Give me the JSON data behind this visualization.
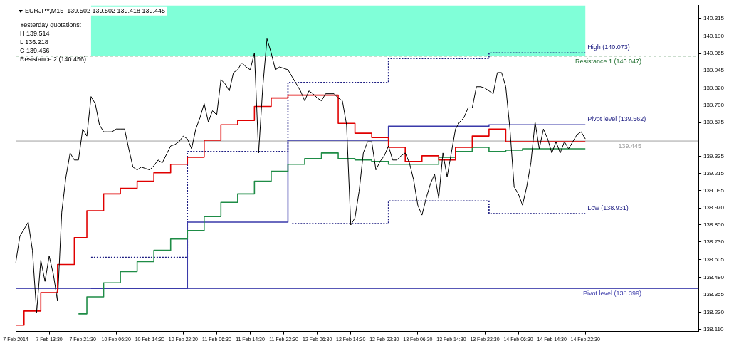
{
  "chart_data": {
    "type": "line",
    "title": "EURJPY,M15  139.502 139.502 139.418 139.445",
    "categories": [
      "7 Feb 2014",
      null,
      null,
      null,
      null,
      null,
      null,
      null,
      "7 Feb 13:30",
      null,
      null,
      null,
      null,
      null,
      null,
      null,
      "7 Feb 21:30",
      null,
      null,
      null,
      null,
      null,
      null,
      null,
      "10 Feb 06:30",
      null,
      null,
      null,
      null,
      null,
      null,
      null,
      "10 Feb 14:30",
      null,
      null,
      null,
      null,
      null,
      null,
      null,
      "10 Feb 22:30",
      null,
      null,
      null,
      null,
      null,
      null,
      null,
      "11 Feb 06:30",
      null,
      null,
      null,
      null,
      null,
      null,
      null,
      "11 Feb 14:30",
      null,
      null,
      null,
      null,
      null,
      null,
      null,
      "11 Feb 22:30",
      null,
      null,
      null,
      null,
      null,
      null,
      null,
      "12 Feb 06:30",
      null,
      null,
      null,
      null,
      null,
      null,
      null,
      "12 Feb 14:30",
      null,
      null,
      null,
      null,
      null,
      null,
      null,
      "12 Feb 22:30",
      null,
      null,
      null,
      null,
      null,
      null,
      null,
      "13 Feb 06:30",
      null,
      null,
      null,
      null,
      null,
      null,
      null,
      "13 Feb 14:30",
      null,
      null,
      null,
      null,
      null,
      null,
      null,
      "13 Feb 22:30",
      null,
      null,
      null,
      null,
      null,
      null,
      null,
      "14 Feb 06:30",
      null,
      null,
      null,
      null,
      null,
      null,
      null,
      "14 Feb 14:30",
      null,
      null,
      null,
      null,
      null,
      null,
      null,
      "14 Feb 22:30",
      null,
      null,
      null,
      null,
      null,
      null,
      null,
      null,
      null,
      null,
      null,
      null,
      null,
      null,
      null,
      null,
      null,
      null,
      null,
      null,
      null,
      null,
      null,
      null,
      null,
      null,
      null
    ],
    "ylim": [
      138.095,
      140.405
    ],
    "yticks": [
      {
        "value": 138.11,
        "label": "138.110"
      },
      {
        "value": 138.23,
        "label": "138.230"
      },
      138.355,
      {
        "value": 138.48,
        "label": "138.480"
      },
      138.605,
      {
        "value": 138.73,
        "label": "138.730"
      },
      {
        "value": 138.85,
        "label": "138.850"
      },
      {
        "value": 138.97,
        "label": "138.970"
      },
      139.095,
      139.215,
      139.335,
      139.575,
      {
        "value": 139.7,
        "label": "139.700"
      },
      {
        "value": 139.82,
        "label": "139.820"
      },
      139.945,
      140.065,
      {
        "value": 140.19,
        "label": "140.190"
      },
      140.315
    ],
    "series": [
      {
        "color": "#000000",
        "values": [
          138.58,
          138.77,
          138.82,
          138.87,
          138.67,
          138.23,
          138.6,
          138.45,
          138.63,
          138.5,
          138.31,
          138.94,
          139.19,
          139.36,
          139.31,
          139.31,
          139.53,
          139.48,
          139.76,
          139.71,
          139.56,
          139.51,
          139.51,
          139.51,
          139.53,
          139.53,
          139.53,
          139.39,
          139.26,
          139.24,
          139.26,
          139.25,
          139.24,
          139.27,
          139.31,
          139.29,
          139.35,
          139.41,
          139.42,
          139.44,
          139.48,
          139.46,
          139.39,
          139.53,
          139.61,
          139.71,
          139.58,
          139.66,
          139.63,
          139.88,
          139.85,
          139.8,
          139.93,
          139.95,
          140.0,
          139.97,
          139.95,
          140.07,
          139.36,
          139.83,
          140.17,
          140.07,
          139.95,
          139.97,
          139.96,
          139.95,
          139.9,
          139.85,
          139.8,
          139.73,
          139.8,
          139.78,
          139.75,
          139.73,
          139.78,
          139.78,
          139.78,
          139.75,
          139.73,
          139.56,
          138.85,
          138.9,
          139.09,
          139.36,
          139.44,
          139.44,
          139.24,
          139.3,
          139.34,
          139.41,
          139.31,
          139.31,
          139.34,
          139.36,
          139.29,
          139.17,
          138.99,
          138.92,
          139.04,
          139.14,
          139.21,
          139.04,
          139.36,
          139.19,
          139.36,
          139.53,
          139.58,
          139.61,
          139.68,
          139.68,
          139.83,
          139.83,
          139.82,
          139.8,
          139.78,
          139.93,
          139.93,
          139.83,
          139.53,
          139.12,
          139.07,
          138.99,
          139.12,
          139.29,
          139.58,
          139.39,
          139.53,
          139.46,
          139.36,
          139.44,
          139.36,
          139.44,
          139.39,
          139.44,
          139.49,
          139.51,
          139.46,
          null,
          null,
          null,
          null,
          null,
          null,
          null,
          null,
          null,
          null,
          null,
          null,
          null,
          null,
          null,
          null,
          null,
          null,
          null,
          null,
          null,
          null,
          null,
          null,
          null,
          null,
          null
        ]
      },
      {
        "type": "step",
        "color": "#e00000",
        "values": [
          138.14,
          138.14,
          138.14,
          138.24,
          138.24,
          138.24,
          138.24,
          138.37,
          138.37,
          138.37,
          138.37,
          138.57,
          138.57,
          138.57,
          138.57,
          138.76,
          138.76,
          138.76,
          138.95,
          138.95,
          138.95,
          138.95,
          139.07,
          139.07,
          139.07,
          139.07,
          139.11,
          139.11,
          139.11,
          139.11,
          139.16,
          139.16,
          139.16,
          139.16,
          139.22,
          139.22,
          139.22,
          139.22,
          139.28,
          139.28,
          139.28,
          139.28,
          139.33,
          139.33,
          139.33,
          139.33,
          139.45,
          139.45,
          139.45,
          139.45,
          139.56,
          139.56,
          139.56,
          139.56,
          139.59,
          139.59,
          139.59,
          139.59,
          139.69,
          139.69,
          139.69,
          139.69,
          139.75,
          139.75,
          139.75,
          139.75,
          139.77,
          139.77,
          139.77,
          139.77,
          139.77,
          139.77,
          139.77,
          139.77,
          139.77,
          139.77,
          139.77,
          139.77,
          139.57,
          139.57,
          139.57,
          139.57,
          139.5,
          139.5,
          139.5,
          139.5,
          139.47,
          139.47,
          139.47,
          139.47,
          139.4,
          139.4,
          139.4,
          139.4,
          139.3,
          139.3,
          139.3,
          139.3,
          139.34,
          139.34,
          139.34,
          139.34,
          139.31,
          139.31,
          139.31,
          139.31,
          139.4,
          139.4,
          139.4,
          139.4,
          139.48,
          139.48,
          139.48,
          139.48,
          139.53,
          139.53,
          139.53,
          139.53,
          139.44,
          139.44,
          139.44,
          139.44,
          139.44,
          139.44,
          139.44,
          139.44,
          139.44,
          139.44,
          139.44,
          139.44,
          139.44,
          139.44,
          139.44,
          139.44,
          139.44,
          139.44,
          139.44,
          null,
          null,
          null,
          null,
          null,
          null,
          null,
          null,
          null,
          null,
          null,
          null,
          null,
          null,
          null,
          null,
          null,
          null,
          null,
          null,
          null,
          null,
          null,
          null,
          null,
          null,
          null
        ]
      },
      {
        "type": "step",
        "color": "#1e8c46",
        "values": [
          null,
          null,
          null,
          null,
          null,
          null,
          null,
          null,
          null,
          null,
          null,
          null,
          null,
          null,
          null,
          138.22,
          138.22,
          138.22,
          138.34,
          138.34,
          138.34,
          138.34,
          138.44,
          138.44,
          138.44,
          138.44,
          138.52,
          138.52,
          138.52,
          138.52,
          138.59,
          138.59,
          138.59,
          138.59,
          138.67,
          138.67,
          138.67,
          138.67,
          138.75,
          138.75,
          138.75,
          138.75,
          138.81,
          138.81,
          138.81,
          138.81,
          138.91,
          138.91,
          138.91,
          138.91,
          139.01,
          139.01,
          139.01,
          139.01,
          139.07,
          139.07,
          139.07,
          139.07,
          139.16,
          139.16,
          139.16,
          139.16,
          139.23,
          139.23,
          139.23,
          139.23,
          139.28,
          139.28,
          139.28,
          139.28,
          139.32,
          139.32,
          139.32,
          139.32,
          139.36,
          139.36,
          139.36,
          139.36,
          139.32,
          139.32,
          139.32,
          139.32,
          139.31,
          139.31,
          139.31,
          139.31,
          139.3,
          139.3,
          139.3,
          139.3,
          139.28,
          139.28,
          139.28,
          139.28,
          139.28,
          139.28,
          139.28,
          139.28,
          139.28,
          139.28,
          139.28,
          139.28,
          139.33,
          139.33,
          139.33,
          139.33,
          139.37,
          139.37,
          139.37,
          139.37,
          139.4,
          139.4,
          139.4,
          139.4,
          139.37,
          139.37,
          139.37,
          139.37,
          139.38,
          139.38,
          139.38,
          139.38,
          139.39,
          139.39,
          139.39,
          139.39,
          139.39,
          139.39,
          139.39,
          139.39,
          139.39,
          139.39,
          139.39,
          139.39,
          139.39,
          139.39,
          139.39,
          null,
          null,
          null,
          null,
          null,
          null,
          null,
          null,
          null,
          null,
          null,
          null,
          null,
          null,
          null,
          null,
          null,
          null,
          null,
          null,
          null,
          null,
          null,
          null,
          null,
          null,
          null
        ]
      },
      {
        "type": "step",
        "color": "#3a3aaa",
        "values": [
          null,
          null,
          null,
          null,
          null,
          null,
          null,
          null,
          null,
          null,
          null,
          null,
          null,
          null,
          null,
          null,
          null,
          null,
          138.4,
          138.4,
          138.4,
          138.4,
          138.4,
          138.4,
          138.4,
          138.4,
          138.4,
          138.4,
          138.4,
          138.4,
          138.4,
          138.4,
          138.4,
          138.4,
          138.4,
          138.4,
          138.4,
          138.4,
          138.4,
          138.4,
          138.4,
          138.4,
          138.87,
          138.87,
          138.87,
          138.87,
          138.87,
          138.87,
          138.87,
          138.87,
          138.87,
          138.87,
          138.87,
          138.87,
          138.87,
          138.87,
          138.87,
          138.87,
          138.87,
          138.87,
          138.87,
          138.87,
          138.87,
          138.87,
          138.87,
          138.87,
          139.45,
          139.45,
          139.45,
          139.45,
          139.45,
          139.45,
          139.45,
          139.45,
          139.45,
          139.45,
          139.45,
          139.45,
          139.45,
          139.45,
          139.45,
          139.45,
          139.45,
          139.45,
          139.45,
          139.45,
          139.45,
          139.45,
          139.45,
          139.45,
          139.55,
          139.55,
          139.55,
          139.55,
          139.55,
          139.55,
          139.55,
          139.55,
          139.55,
          139.55,
          139.55,
          139.55,
          139.55,
          139.55,
          139.55,
          139.55,
          139.55,
          139.55,
          139.55,
          139.55,
          139.55,
          139.55,
          139.55,
          139.55,
          139.56,
          139.56,
          139.56,
          139.56,
          139.56,
          139.56,
          139.56,
          139.56,
          139.56,
          139.56,
          139.56,
          139.56,
          139.56,
          139.56,
          139.56,
          139.56,
          139.56,
          139.56,
          139.56,
          139.56,
          139.56,
          139.56,
          139.56,
          null,
          null,
          null,
          null,
          null,
          null,
          null,
          null,
          null,
          null,
          null,
          null,
          null,
          null,
          null,
          null,
          null,
          null,
          null,
          null,
          null,
          null,
          null,
          null,
          null,
          null,
          null
        ]
      },
      {
        "type": "step",
        "color": "#1a1a80",
        "line_style": "dotted",
        "values": [
          null,
          null,
          null,
          null,
          null,
          null,
          null,
          null,
          null,
          null,
          null,
          null,
          null,
          null,
          null,
          null,
          null,
          null,
          138.62,
          138.62,
          138.62,
          138.62,
          138.62,
          138.62,
          138.62,
          138.62,
          138.62,
          138.62,
          138.62,
          138.62,
          138.62,
          138.62,
          138.62,
          138.62,
          138.62,
          138.62,
          138.62,
          138.62,
          138.62,
          138.62,
          138.62,
          138.62,
          139.37,
          139.37,
          139.37,
          139.37,
          139.37,
          139.37,
          139.37,
          139.37,
          139.37,
          139.37,
          139.37,
          139.37,
          139.37,
          139.37,
          139.37,
          139.37,
          139.37,
          139.37,
          139.37,
          139.37,
          139.37,
          139.37,
          139.37,
          139.37,
          139.86,
          139.86,
          139.86,
          139.86,
          139.86,
          139.86,
          139.86,
          139.86,
          139.86,
          139.86,
          139.86,
          139.86,
          139.86,
          139.86,
          139.86,
          139.86,
          139.86,
          139.86,
          139.86,
          139.86,
          139.86,
          139.86,
          139.86,
          139.86,
          140.03,
          140.03,
          140.03,
          140.03,
          140.03,
          140.03,
          140.03,
          140.03,
          140.03,
          140.03,
          140.03,
          140.03,
          140.03,
          140.03,
          140.03,
          140.03,
          140.03,
          140.03,
          140.03,
          140.03,
          140.03,
          140.03,
          140.03,
          140.03,
          140.07,
          140.07,
          140.07,
          140.07,
          140.07,
          140.07,
          140.07,
          140.07,
          140.07,
          140.07,
          140.07,
          140.07,
          140.07,
          140.07,
          140.07,
          140.07,
          140.07,
          140.07,
          140.07,
          140.07,
          140.07,
          140.07,
          140.07,
          null,
          null,
          null,
          null,
          null,
          null,
          null,
          null,
          null,
          null,
          null,
          null,
          null,
          null,
          null,
          null,
          null,
          null,
          null,
          null,
          null,
          null,
          null,
          null,
          null,
          null,
          null
        ]
      },
      {
        "type": "step",
        "color": "#1a1a80",
        "line_style": "dotted",
        "values": [
          null,
          null,
          null,
          null,
          null,
          null,
          null,
          null,
          null,
          null,
          null,
          null,
          null,
          null,
          null,
          null,
          null,
          null,
          null,
          null,
          null,
          null,
          null,
          null,
          null,
          null,
          null,
          null,
          null,
          null,
          null,
          null,
          null,
          null,
          null,
          null,
          null,
          null,
          null,
          null,
          null,
          null,
          null,
          null,
          null,
          null,
          null,
          null,
          null,
          null,
          null,
          null,
          null,
          null,
          null,
          null,
          null,
          null,
          null,
          null,
          null,
          null,
          null,
          null,
          null,
          null,
          138.86,
          138.86,
          138.86,
          138.86,
          138.86,
          138.86,
          138.86,
          138.86,
          138.86,
          138.86,
          138.86,
          138.86,
          138.86,
          138.86,
          138.86,
          138.86,
          138.86,
          138.86,
          138.86,
          138.86,
          138.86,
          138.86,
          138.86,
          138.86,
          139.02,
          139.02,
          139.02,
          139.02,
          139.02,
          139.02,
          139.02,
          139.02,
          139.02,
          139.02,
          139.02,
          139.02,
          139.02,
          139.02,
          139.02,
          139.02,
          139.02,
          139.02,
          139.02,
          139.02,
          139.02,
          139.02,
          139.02,
          139.02,
          138.93,
          138.93,
          138.93,
          138.93,
          138.93,
          138.93,
          138.93,
          138.93,
          138.93,
          138.93,
          138.93,
          138.93,
          138.93,
          138.93,
          138.93,
          138.93,
          138.93,
          138.93,
          138.93,
          138.93,
          138.93,
          138.93,
          138.93,
          null,
          null,
          null,
          null,
          null,
          null,
          null,
          null,
          null,
          null,
          null,
          null,
          null,
          null,
          null,
          null,
          null,
          null,
          null,
          null,
          null,
          null,
          null,
          null,
          null,
          null,
          null
        ]
      }
    ],
    "ref_lines": [
      {
        "axis": "y",
        "value": 140.047,
        "label": "Resistance 1 (140.047)",
        "color": "#1e6e2e",
        "line_style": "dashed"
      },
      {
        "axis": "y",
        "value": 138.399,
        "label": "Pivot level (138.399)",
        "color": "#3a3aaa",
        "line_style": "solid"
      },
      {
        "axis": "y",
        "value": 139.445,
        "label": "139.445",
        "color": "#a0a0a0",
        "line_style": "solid"
      }
    ],
    "bands": [
      {
        "axis": "y",
        "from": 140.047,
        "to": 140.405,
        "color": "#80ffd8"
      }
    ],
    "annotations": [
      "Yesterday quotations:",
      "H 139.514",
      "L 136.218",
      "C 139.466",
      "Resistance 2 (140.456)",
      {
        "text": "High (140.073)",
        "x": "14 Feb 22:30",
        "y": 140.073
      },
      {
        "text": "Pivot level (139.562)",
        "x": "14 Feb 22:30",
        "y": 139.562
      },
      {
        "text": "Low (138.931)",
        "x": "14 Feb 22:30",
        "y": 138.931
      }
    ],
    "legend": false,
    "grid": false,
    "marker": "none"
  }
}
